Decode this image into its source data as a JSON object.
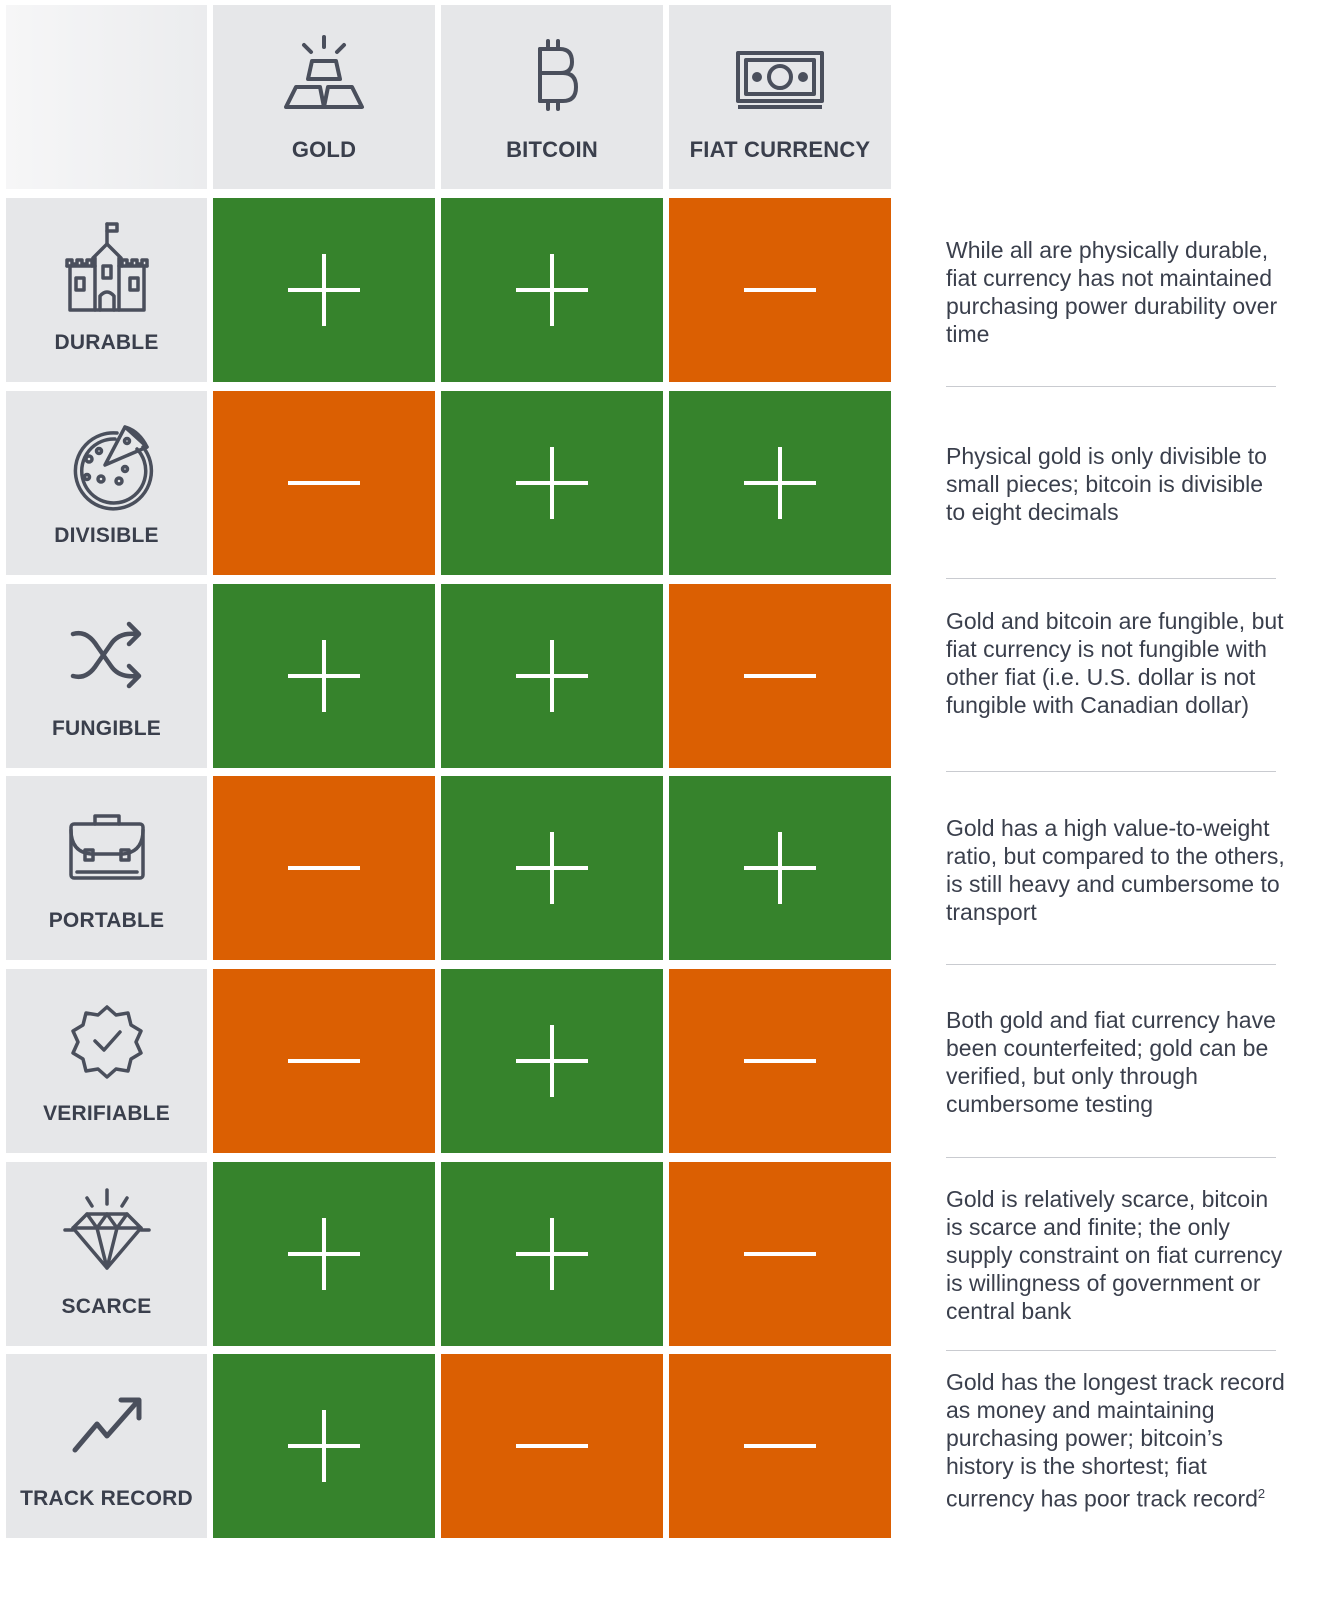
{
  "columns": [
    {
      "key": "gold",
      "label": "GOLD",
      "icon": "gold-bars-icon"
    },
    {
      "key": "bitcoin",
      "label": "BITCOIN",
      "icon": "bitcoin-icon"
    },
    {
      "key": "fiat",
      "label": "FIAT CURRENCY",
      "icon": "banknote-icon"
    }
  ],
  "colors": {
    "positive": "#36832c",
    "negative": "#db5f02",
    "header_bg": "#e6e7e9",
    "text": "#3a3f4c"
  },
  "rows": [
    {
      "label": "DURABLE",
      "icon": "castle-icon",
      "values": [
        "+",
        "+",
        "-"
      ],
      "note": "While all are physically durable, fiat currency has not maintained purchasing power durability over time"
    },
    {
      "label": "DIVISIBLE",
      "icon": "pizza-icon",
      "values": [
        "-",
        "+",
        "+"
      ],
      "note": "Physical gold is only divisible to small pieces; bitcoin is divisible to eight decimals"
    },
    {
      "label": "FUNGIBLE",
      "icon": "shuffle-icon",
      "values": [
        "+",
        "+",
        "-"
      ],
      "note": "Gold and bitcoin are fungible, but fiat currency is not fungible with other fiat (i.e. U.S. dollar is not fungible with Canadian dollar)"
    },
    {
      "label": "PORTABLE",
      "icon": "briefcase-icon",
      "values": [
        "-",
        "+",
        "+"
      ],
      "note": "Gold has a high value-to-weight ratio, but compared to the others, is still heavy and cumbersome to transport"
    },
    {
      "label": "VERIFIABLE",
      "icon": "verified-badge-icon",
      "values": [
        "-",
        "+",
        "-"
      ],
      "note": "Both gold and fiat currency have been counterfeited; gold can be verified, but only through cumbersome testing"
    },
    {
      "label": "SCARCE",
      "icon": "diamond-icon",
      "values": [
        "+",
        "+",
        "-"
      ],
      "note": "Gold is relatively scarce, bitcoin is scarce and finite; the only supply constraint on fiat currency is willingness of government or central bank"
    },
    {
      "label": "TRACK RECORD",
      "icon": "trending-up-icon",
      "values": [
        "+",
        "-",
        "-"
      ],
      "note": "Gold has the longest track record as money and maintaining purchasing power; bitcoin’s history is the shortest; fiat currency has poor track record",
      "note_footnote": "2"
    }
  ]
}
